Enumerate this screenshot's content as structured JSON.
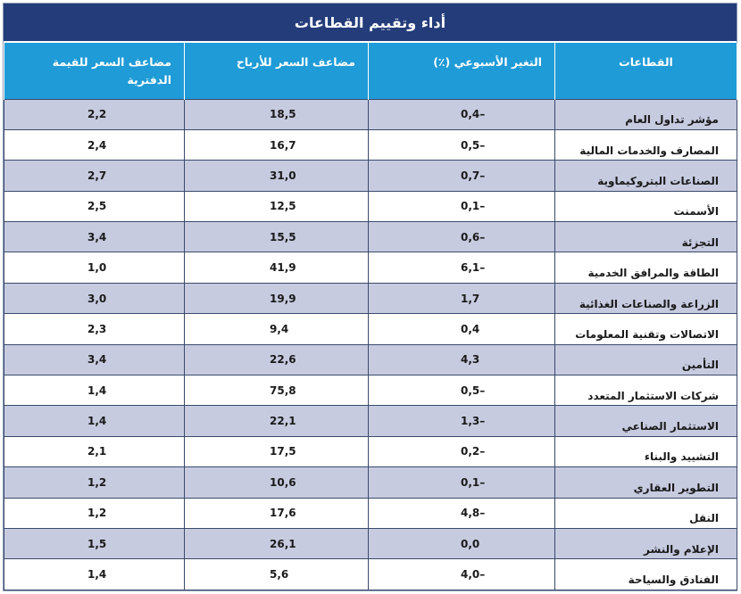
{
  "table": {
    "title": "أداء وتقييم القطاعات",
    "headers": {
      "sector": "القطاعات",
      "weekly_change": "التغير الأسبوعي (٪)",
      "pe": "مضاعف السعر للأرباح",
      "pb": "مضاعف السعر للقيمة الدفترية"
    },
    "rows": [
      {
        "sector": "مؤشر تداول العام",
        "change": "0,4–",
        "pe": "18,5",
        "pb": "2,2"
      },
      {
        "sector": "المصارف والخدمات المالية",
        "change": "0,5–",
        "pe": "16,7",
        "pb": "2,4"
      },
      {
        "sector": "الصناعات البتروكيماوية",
        "change": "0,7–",
        "pe": "31,0",
        "pb": "2,7"
      },
      {
        "sector": "الأسمنت",
        "change": "0,1–",
        "pe": "12,5",
        "pb": "2,5"
      },
      {
        "sector": "التجزئة",
        "change": "0,6–",
        "pe": "15,5",
        "pb": "3,4"
      },
      {
        "sector": "الطاقة والمرافق الخدمية",
        "change": "6,1–",
        "pe": "41,9",
        "pb": "1,0"
      },
      {
        "sector": "الزراعة والصناعات الغذائية",
        "change": "1,7",
        "pe": "19,9",
        "pb": "3,0"
      },
      {
        "sector": "الاتصالات وتقنية المعلومات",
        "change": "0,4",
        "pe": "9,4",
        "pb": "2,3"
      },
      {
        "sector": "التأمين",
        "change": "4,3",
        "pe": "22,6",
        "pb": "3,4"
      },
      {
        "sector": "شركات الاستثمار المتعدد",
        "change": "0,5–",
        "pe": "75,8",
        "pb": "1,4"
      },
      {
        "sector": "الاستثمار الصناعي",
        "change": "1,3–",
        "pe": "22,1",
        "pb": "1,4"
      },
      {
        "sector": "التشييد والبناء",
        "change": "0,2–",
        "pe": "17,5",
        "pb": "2,1"
      },
      {
        "sector": "التطوير العقاري",
        "change": "0,1–",
        "pe": "10,6",
        "pb": "1,2"
      },
      {
        "sector": "النقل",
        "change": "4,8–",
        "pe": "17,6",
        "pb": "1,2"
      },
      {
        "sector": "الإعلام والنشر",
        "change": "0,0",
        "pe": "26,1",
        "pb": "1,5"
      },
      {
        "sector": "الفنادق والسياحة",
        "change": "4,0–",
        "pe": "5,6",
        "pb": "1,4"
      }
    ]
  },
  "colors": {
    "title_bg": "#243d7a",
    "header_bg": "#1f9bd7",
    "row_stripe": "#c7cbe0",
    "row_plain": "#ffffff"
  }
}
